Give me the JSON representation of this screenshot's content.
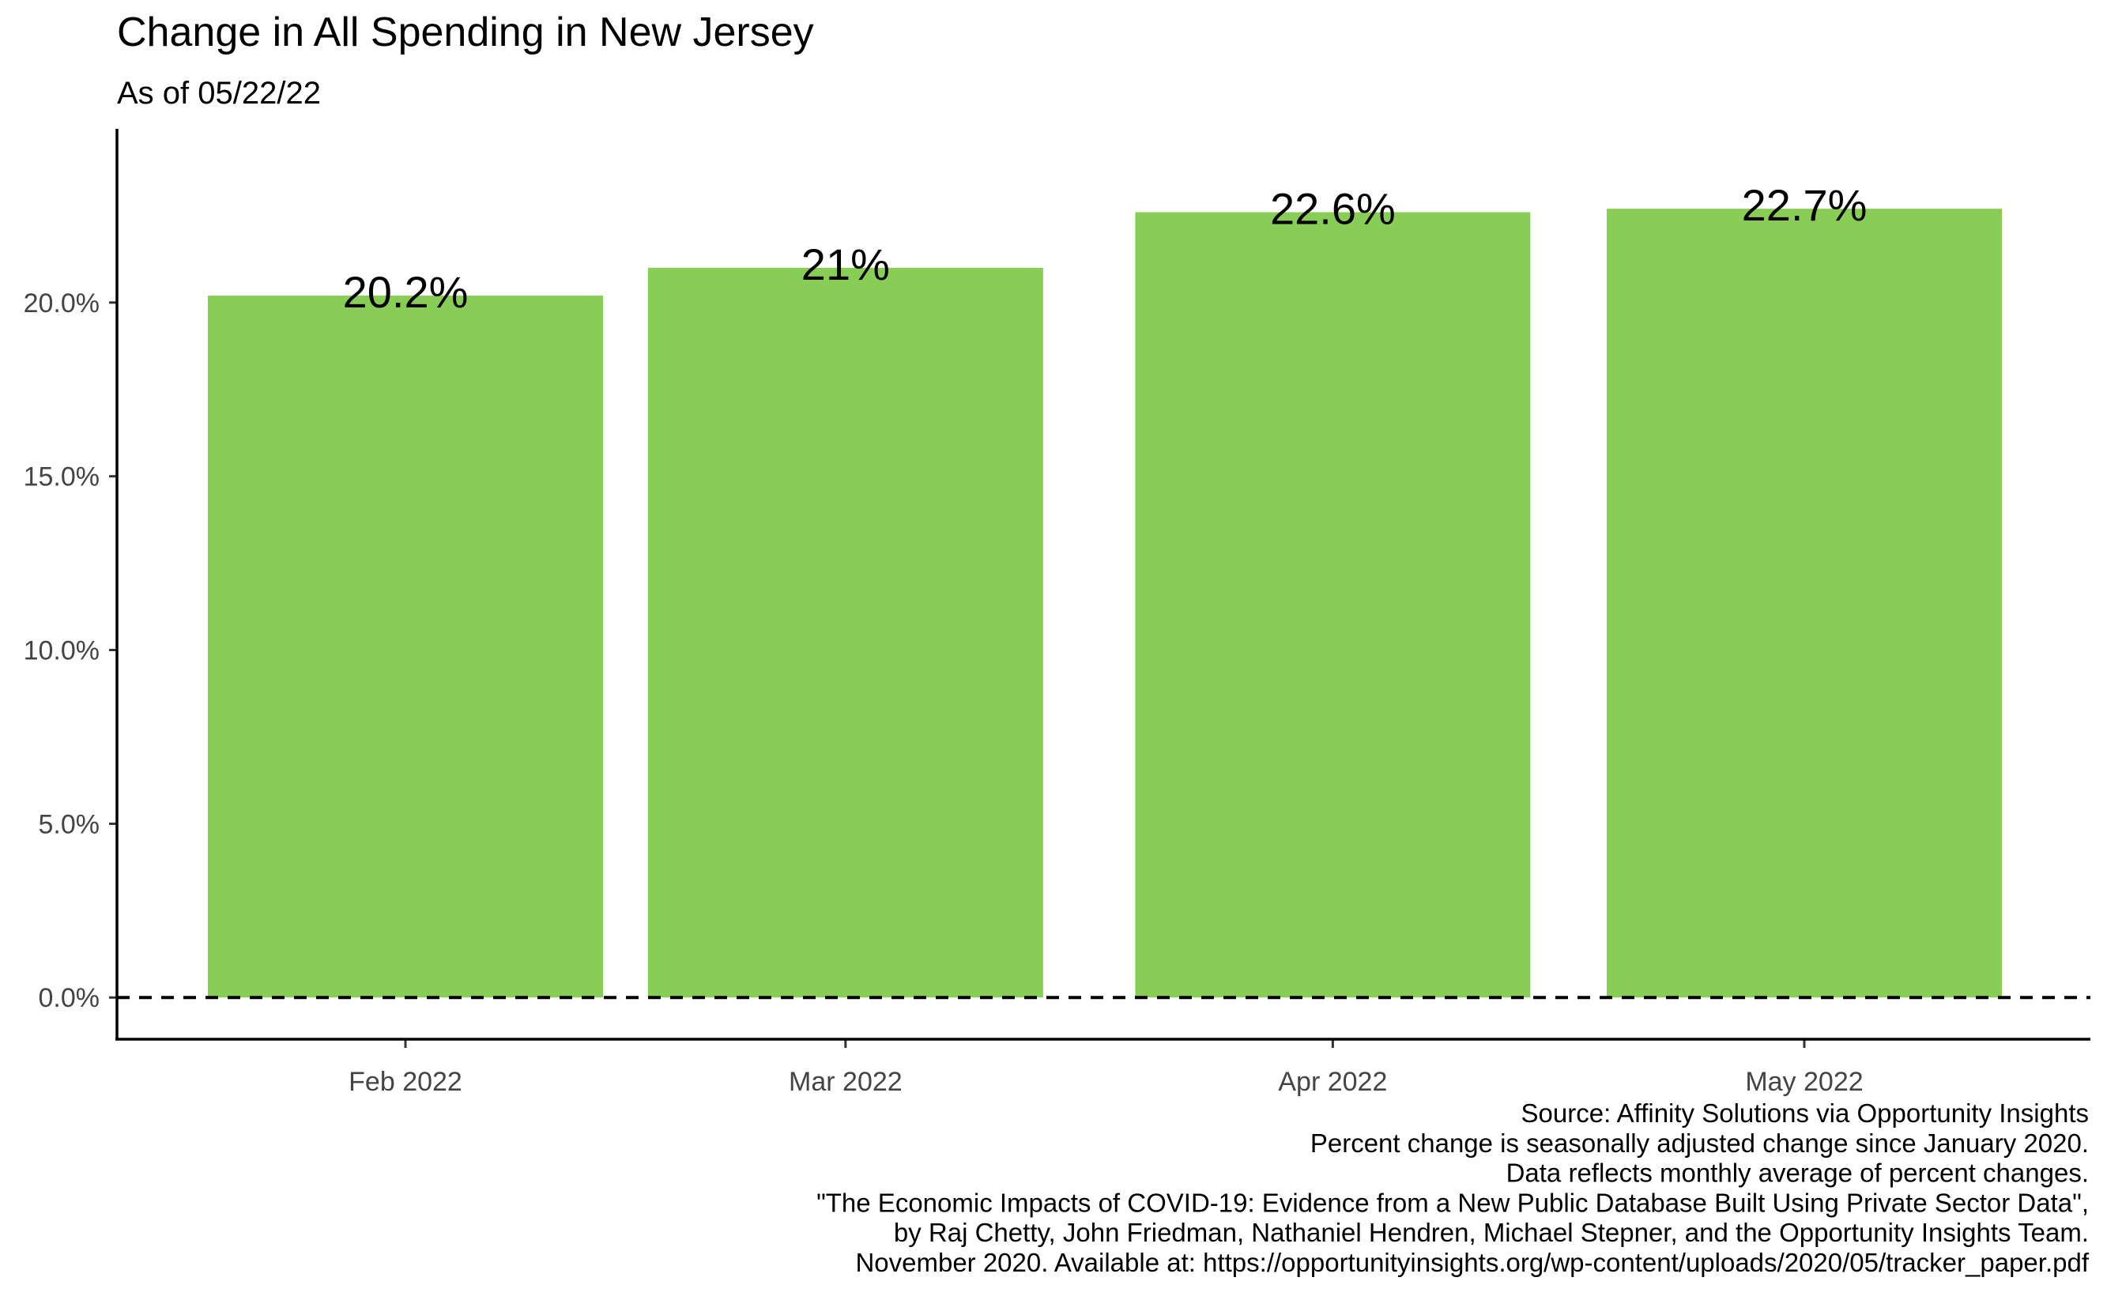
{
  "chart_data": {
    "type": "bar",
    "title": "Change in All Spending in New Jersey",
    "subtitle": "As of 05/22/22",
    "xlabel": "",
    "ylabel": "",
    "categories": [
      "Feb 2022",
      "Mar 2022",
      "Apr 2022",
      "May 2022"
    ],
    "dates": [
      "2022-02-01",
      "2022-03-01",
      "2022-04-01",
      "2022-05-01"
    ],
    "values": [
      20.2,
      21.0,
      22.6,
      22.7
    ],
    "value_labels": [
      "20.2%",
      "21%",
      "22.6%",
      "22.7%"
    ],
    "ylim": [
      -1.2,
      25.0
    ],
    "y_ticks": [
      0,
      5,
      10,
      15,
      20
    ],
    "y_tick_labels": [
      "0.0%",
      "5.0%",
      "10.0%",
      "15.0%",
      "20.0%"
    ],
    "reference_line": {
      "y": 0,
      "style": "dashed"
    },
    "grid": false,
    "legend": "none",
    "bar_color": "#88CD55",
    "caption": [
      "Source: Affinity Solutions via Opportunity Insights",
      "Percent change is seasonally adjusted change since January 2020.",
      "Data reflects monthly average of percent changes.",
      "\"The Economic Impacts of COVID-19: Evidence from a New Public Database Built Using Private Sector Data\",",
      "by Raj Chetty, John Friedman, Nathaniel Hendren, Michael Stepner, and the Opportunity Insights Team.",
      "November 2020. Available at: https://opportunityinsights.org/wp-content/uploads/2020/05/tracker_paper.pdf"
    ]
  }
}
